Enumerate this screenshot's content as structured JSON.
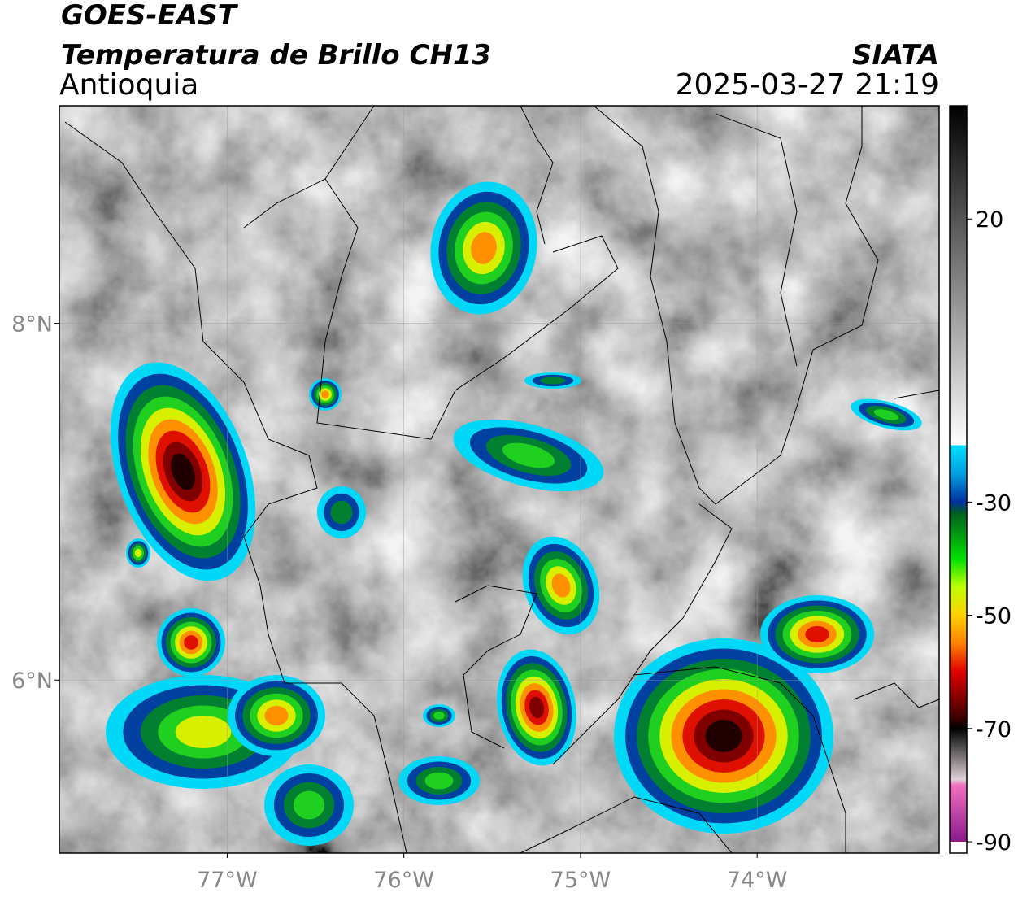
{
  "map": {
    "title": "GOES-EAST",
    "subtitle": "Temperatura de Brillo CH13",
    "region": "Antioquia",
    "source": "SIATA",
    "datetime": "2025-03-27 21:19",
    "xlim": [
      -77.95,
      -72.97
    ],
    "ylim": [
      5.03,
      9.22
    ],
    "xticks": [
      {
        "value": -77,
        "label": "77°W"
      },
      {
        "value": -76,
        "label": "76°W"
      },
      {
        "value": -75,
        "label": "75°W"
      },
      {
        "value": -74,
        "label": "74°W"
      }
    ],
    "yticks": [
      {
        "value": 6,
        "label": "6°N"
      },
      {
        "value": 8,
        "label": "8°N"
      }
    ],
    "grid": true,
    "colorbar": {
      "clim": [
        -92,
        40
      ],
      "ticks": [
        20,
        -30,
        -50,
        -70,
        -90
      ],
      "colormap": [
        {
          "value": -92,
          "color": "#ffffff"
        },
        {
          "value": -90,
          "color": "#ffffff"
        },
        {
          "value": -90,
          "color": "#8a1a8a"
        },
        {
          "value": -80,
          "color": "#f070c0"
        },
        {
          "value": -79,
          "color": "#e0d0d8"
        },
        {
          "value": -72,
          "color": "#303030"
        },
        {
          "value": -70,
          "color": "#000000"
        },
        {
          "value": -68,
          "color": "#400000"
        },
        {
          "value": -60,
          "color": "#e00000"
        },
        {
          "value": -55,
          "color": "#ff8000"
        },
        {
          "value": -50,
          "color": "#ffd000"
        },
        {
          "value": -45,
          "color": "#c0ff00"
        },
        {
          "value": -40,
          "color": "#00e000"
        },
        {
          "value": -32,
          "color": "#006020"
        },
        {
          "value": -30,
          "color": "#0030a0"
        },
        {
          "value": -25,
          "color": "#00a0e0"
        },
        {
          "value": -20,
          "color": "#00e0ff"
        },
        {
          "value": -20,
          "color": "#ffffff"
        },
        {
          "value": 40,
          "color": "#000000"
        }
      ]
    }
  }
}
